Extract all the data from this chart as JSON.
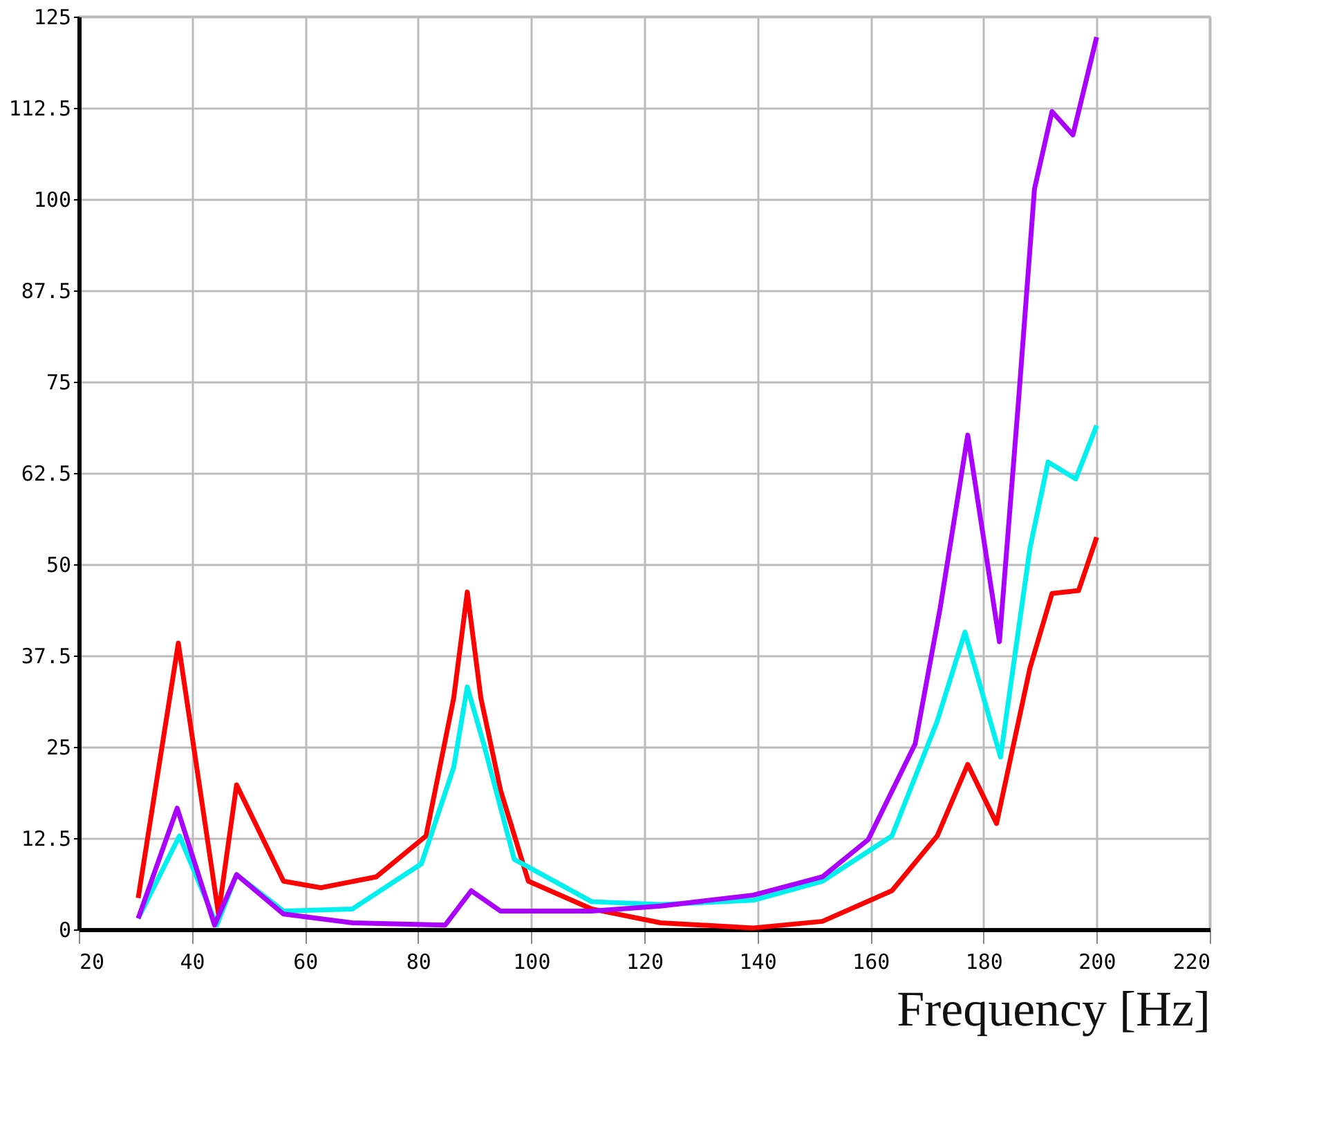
{
  "chart_data": {
    "type": "line",
    "xlabel": "Frequency [Hz]",
    "xlim": [
      20,
      220
    ],
    "xticks": [
      20,
      40,
      60,
      80,
      100,
      120,
      140,
      160,
      180,
      200,
      220
    ],
    "ylim": [
      0,
      125
    ],
    "yticks": [
      0,
      12.5,
      25,
      37.5,
      50,
      62.5,
      75,
      87.5,
      100,
      112.5,
      125
    ],
    "grid": true,
    "legend": false,
    "marker": "none",
    "line_style": "solid",
    "series": [
      {
        "color": "#ff0000",
        "x": [
          30.5,
          37.6,
          44.7,
          47.9,
          56.2,
          62.8,
          72.6,
          81.4,
          86.3,
          88.7,
          91.1,
          94.6,
          99.5,
          110.7,
          122.9,
          139.3,
          151.5,
          163.8,
          171.8,
          177.2,
          182.3,
          188.2,
          192.1,
          196.8,
          200
        ],
        "values": [
          4.3,
          39.2,
          2.1,
          19.8,
          6.6,
          5.7,
          7.2,
          12.8,
          31.7,
          46.2,
          31.7,
          19,
          6.6,
          2.8,
          0.9,
          0.2,
          1.1,
          5.3,
          12.8,
          22.6,
          14.5,
          35.8,
          46,
          46.4,
          53.7
        ]
      },
      {
        "color": "#00f0f0",
        "x": [
          30.5,
          37.8,
          44.4,
          47.9,
          56.2,
          68.4,
          80.6,
          86.3,
          88.7,
          91.6,
          97,
          110.7,
          122.9,
          139.3,
          151.5,
          163.8,
          171.8,
          176.7,
          183,
          188.2,
          191.4,
          196.3,
          200
        ],
        "values": [
          1.5,
          12.8,
          0.6,
          7.5,
          2.5,
          2.8,
          9,
          22.2,
          33.2,
          25.4,
          9.6,
          3.8,
          3.4,
          4,
          6.6,
          12.8,
          28.5,
          40.7,
          23.6,
          52.2,
          64,
          61.7,
          69
        ]
      },
      {
        "color": "#aa00ff",
        "x": [
          30.5,
          37.4,
          44,
          47.9,
          56.2,
          68.4,
          84.8,
          89.4,
          94.6,
          110.7,
          122.9,
          139.3,
          151.5,
          159.6,
          167.9,
          172.3,
          177.2,
          182.8,
          186.2,
          189,
          192.1,
          195.8,
          200
        ],
        "values": [
          1.5,
          16.6,
          0.6,
          7.5,
          2.1,
          0.9,
          0.6,
          5.3,
          2.5,
          2.5,
          3.2,
          4.7,
          7.2,
          12.3,
          25.4,
          43.9,
          67.7,
          39.4,
          72.6,
          101.4,
          112,
          108.8,
          122.2
        ]
      }
    ]
  }
}
